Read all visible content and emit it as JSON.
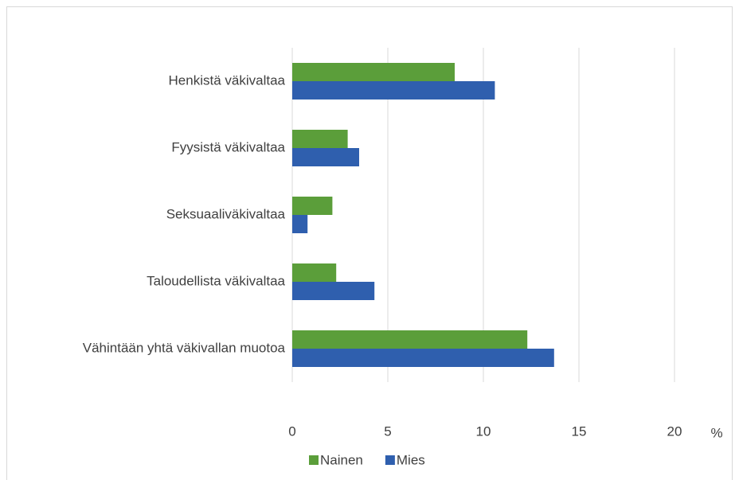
{
  "chart_data": {
    "type": "bar",
    "orientation": "horizontal",
    "categories": [
      "Henkistä väkivaltaa",
      "Fyysistä väkivaltaa",
      "Seksuaaliväkivaltaa",
      "Taloudellista väkivaltaa",
      "Vähintään yhtä väkivallan muotoa"
    ],
    "series": [
      {
        "name": "Nainen",
        "color": "#5b9e3a",
        "values": [
          8.5,
          2.9,
          2.1,
          2.3,
          12.3
        ]
      },
      {
        "name": "Mies",
        "color": "#2f5fae",
        "values": [
          10.6,
          3.5,
          0.8,
          4.3,
          13.7
        ]
      }
    ],
    "xlim": [
      0,
      20
    ],
    "xticks": [
      0,
      5,
      10,
      15,
      20
    ],
    "xlabel": "%",
    "grid": true,
    "legend": "bottom"
  }
}
